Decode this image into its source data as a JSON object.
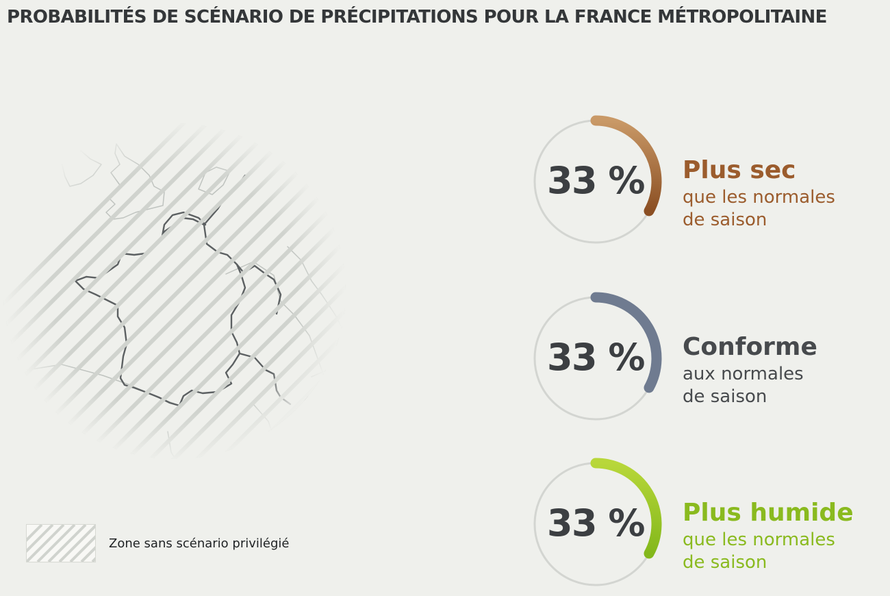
{
  "page": {
    "title": "PROBABILITÉS DE SCÉNARIO DE PRÉCIPITATIONS POUR LA FRANCE MÉTROPOLITAINE"
  },
  "map": {
    "legend_label": "Zone sans scénario privilégié"
  },
  "chart_data": {
    "type": "pie",
    "unit": "%",
    "series": [
      {
        "name": "Plus sec",
        "subtitle": "que les normales de saison",
        "value": 33,
        "label": "33 %",
        "subtitle_line1": "que les normales",
        "subtitle_line2": "de saison",
        "color": "#9a5e2d",
        "color_light": "#c99967",
        "color_dark": "#8b4f23",
        "title_color": "#9b5c2d"
      },
      {
        "name": "Conforme",
        "subtitle": "aux normales de saison",
        "value": 33,
        "label": "33 %",
        "subtitle_line1": "aux normales",
        "subtitle_line2": "de saison",
        "color": "#6f7b90",
        "color_light": "#6f7b90",
        "color_dark": "#6f7b90",
        "title_color": "#474a4d"
      },
      {
        "name": "Plus humide",
        "subtitle": "que les normales de saison",
        "value": 33,
        "label": "33 %",
        "subtitle_line1": "que les normales",
        "subtitle_line2": "de saison",
        "color": "#8fbe1d",
        "color_light": "#b8d73a",
        "color_dark": "#83b81b",
        "title_color": "#8aba1f"
      }
    ]
  }
}
